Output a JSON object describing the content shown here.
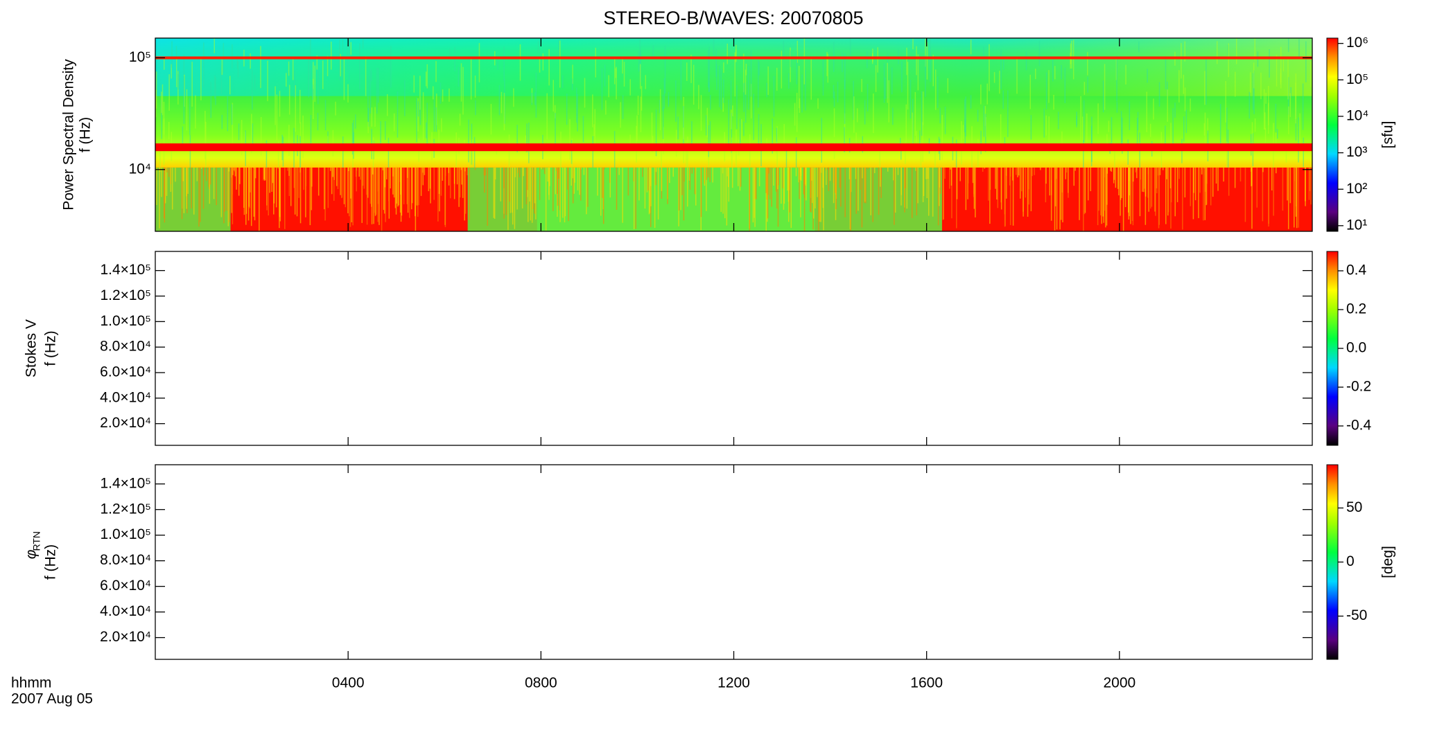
{
  "chart_data": [
    {
      "type": "spectrogram",
      "title": "STEREO-B/WAVES: 20070805",
      "ylabel": [
        "Power Spectral Density",
        "f (Hz)"
      ],
      "yscale": "log",
      "ylim": [
        2800,
        150000
      ],
      "yticks": [
        {
          "value": 10000,
          "label": "10⁴"
        },
        {
          "value": 100000,
          "label": "10⁵"
        }
      ],
      "colorbar": {
        "scale": "log",
        "lim": [
          7,
          1400000
        ],
        "label": "[sfu]",
        "ticks": [
          {
            "value": 10,
            "label": "10¹"
          },
          {
            "value": 100,
            "label": "10²"
          },
          {
            "value": 1000,
            "label": "10³"
          },
          {
            "value": 10000,
            "label": "10⁴"
          },
          {
            "value": 100000,
            "label": "10⁵"
          },
          {
            "value": 1000000,
            "label": "10⁶"
          }
        ]
      }
    },
    {
      "type": "spectrogram",
      "ylabel": [
        "Stokes V",
        "f (Hz)"
      ],
      "yscale": "linear",
      "ylim": [
        3000,
        155000
      ],
      "yticks": [
        {
          "value": 20000,
          "label": "2.0×10⁴"
        },
        {
          "value": 40000,
          "label": "4.0×10⁴"
        },
        {
          "value": 60000,
          "label": "6.0×10⁴"
        },
        {
          "value": 80000,
          "label": "8.0×10⁴"
        },
        {
          "value": 100000,
          "label": "1.0×10⁵"
        },
        {
          "value": 120000,
          "label": "1.2×10⁵"
        },
        {
          "value": 140000,
          "label": "1.4×10⁵"
        }
      ],
      "colorbar": {
        "scale": "linear",
        "lim": [
          -0.5,
          0.5
        ],
        "ticks": [
          {
            "value": -0.4,
            "label": "-0.4"
          },
          {
            "value": -0.2,
            "label": "-0.2"
          },
          {
            "value": 0,
            "label": "0.0"
          },
          {
            "value": 0.2,
            "label": "0.2"
          },
          {
            "value": 0.4,
            "label": "0.4"
          }
        ]
      }
    },
    {
      "type": "spectrogram",
      "ylabel": [
        "φ",
        "RTN",
        "f (Hz)"
      ],
      "yscale": "linear",
      "ylim": [
        3000,
        155000
      ],
      "yticks": [
        {
          "value": 20000,
          "label": "2.0×10⁴"
        },
        {
          "value": 40000,
          "label": "4.0×10⁴"
        },
        {
          "value": 60000,
          "label": "6.0×10⁴"
        },
        {
          "value": 80000,
          "label": "8.0×10⁴"
        },
        {
          "value": 100000,
          "label": "1.0×10⁵"
        },
        {
          "value": 120000,
          "label": "1.2×10⁵"
        },
        {
          "value": 140000,
          "label": "1.4×10⁵"
        }
      ],
      "colorbar": {
        "scale": "linear",
        "lim": [
          -90,
          90
        ],
        "label": "[deg]",
        "ticks": [
          -50,
          0,
          50
        ]
      },
      "xlim": [
        0,
        24
      ],
      "xticks": [
        {
          "value": 4,
          "label": "0400"
        },
        {
          "value": 8,
          "label": "0800"
        },
        {
          "value": 12,
          "label": "1200"
        },
        {
          "value": 16,
          "label": "1600"
        },
        {
          "value": 20,
          "label": "2000"
        }
      ],
      "xlabel": [
        "hhmm",
        "2007 Aug 05"
      ]
    }
  ]
}
